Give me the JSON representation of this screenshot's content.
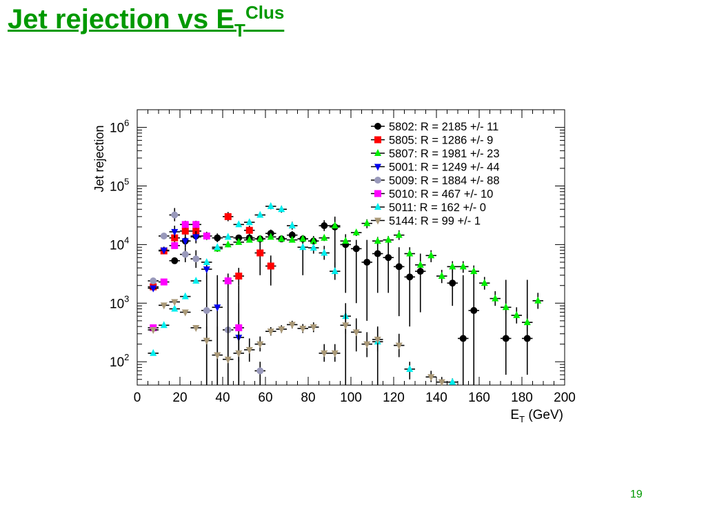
{
  "slide": {
    "title_main": "Jet rejection vs E",
    "title_sub": "T",
    "title_sup": "Clus",
    "page_number": "19"
  },
  "chart_data": {
    "type": "scatter",
    "ylabel": "Jet rejection",
    "xlabel_main": "E",
    "xlabel_sub": "T",
    "xlabel_unit": " (GeV)",
    "xlim": [
      0,
      200
    ],
    "ylim": [
      40,
      2000000
    ],
    "yscale": "log",
    "x_ticks": [
      "0",
      "20",
      "40",
      "60",
      "80",
      "100",
      "120",
      "140",
      "160",
      "180",
      "200"
    ],
    "y_tick_base": "10",
    "y_tick_exponents": [
      "2",
      "3",
      "4",
      "5",
      "6"
    ],
    "legend_position": "top-right",
    "series": [
      {
        "name": "5802: R = 2185 +/- 11",
        "color": "#000000",
        "marker": "circle",
        "points": [
          {
            "x": 17.5,
            "y": 5300,
            "lo": 4700,
            "hi": 6000
          },
          {
            "x": 22.5,
            "y": 11500,
            "lo": 9500,
            "hi": 14000
          },
          {
            "x": 27.5,
            "y": 14000,
            "lo": 11000,
            "hi": 18000
          },
          {
            "x": 37.5,
            "y": 13000,
            "lo": 11000,
            "hi": 15500
          },
          {
            "x": 47.5,
            "y": 13000,
            "lo": 11500,
            "hi": 14500
          },
          {
            "x": 52.5,
            "y": 13000,
            "lo": 11500,
            "hi": 14500
          },
          {
            "x": 57.5,
            "y": 12500,
            "lo": 11000,
            "hi": 14000
          },
          {
            "x": 62.5,
            "y": 15500,
            "lo": 13500,
            "hi": 18000
          },
          {
            "x": 67.5,
            "y": 12500,
            "lo": 11000,
            "hi": 14000
          },
          {
            "x": 72.5,
            "y": 14500,
            "lo": 12500,
            "hi": 17000
          },
          {
            "x": 77.5,
            "y": 12500,
            "lo": 3000,
            "hi": 14500
          },
          {
            "x": 82.5,
            "y": 11500,
            "lo": 8000,
            "hi": 14000
          },
          {
            "x": 87.5,
            "y": 21000,
            "lo": 17000,
            "hi": 26000
          },
          {
            "x": 92.5,
            "y": 20000,
            "lo": 3000,
            "hi": 30000
          },
          {
            "x": 97.5,
            "y": 10000,
            "lo": 1500,
            "hi": 15000
          },
          {
            "x": 102.5,
            "y": 8500,
            "lo": 1000,
            "hi": 12000
          },
          {
            "x": 107.5,
            "y": 5000,
            "lo": 500,
            "hi": 12000
          },
          {
            "x": 112.5,
            "y": 7000,
            "lo": 1500,
            "hi": 12000
          },
          {
            "x": 117.5,
            "y": 6000,
            "lo": 1500,
            "hi": 11000
          },
          {
            "x": 122.5,
            "y": 4200,
            "lo": 600,
            "hi": 9000
          },
          {
            "x": 127.5,
            "y": 2800,
            "lo": 400,
            "hi": 6000
          },
          {
            "x": 132.5,
            "y": 3500,
            "lo": 700,
            "hi": 7000
          },
          {
            "x": 147.5,
            "y": 2200,
            "lo": 900,
            "hi": 4000
          },
          {
            "x": 152.5,
            "y": 250,
            "lo": 40,
            "hi": 3000
          },
          {
            "x": 157.5,
            "y": 750,
            "lo": 40,
            "hi": 3000
          },
          {
            "x": 172.5,
            "y": 250,
            "lo": 60,
            "hi": 2500
          },
          {
            "x": 182.5,
            "y": 250,
            "lo": 60,
            "hi": 2500
          }
        ]
      },
      {
        "name": "5805: R = 1286 +/- 9",
        "color": "#ff0000",
        "marker": "square",
        "points": [
          {
            "x": 7.5,
            "y": 1900,
            "lo": 1800,
            "hi": 2000
          },
          {
            "x": 12.5,
            "y": 7800,
            "lo": 7000,
            "hi": 8600
          },
          {
            "x": 17.5,
            "y": 13000,
            "lo": 11000,
            "hi": 16000
          },
          {
            "x": 22.5,
            "y": 17000,
            "lo": 14000,
            "hi": 21000
          },
          {
            "x": 27.5,
            "y": 17000,
            "lo": 14000,
            "hi": 21000
          },
          {
            "x": 42.5,
            "y": 30000,
            "lo": 25000,
            "hi": 36000
          },
          {
            "x": 47.5,
            "y": 2900,
            "lo": 2000,
            "hi": 4000
          },
          {
            "x": 52.5,
            "y": 17500,
            "lo": 14500,
            "hi": 21000
          },
          {
            "x": 57.5,
            "y": 7200,
            "lo": 3000,
            "hi": 12000
          },
          {
            "x": 62.5,
            "y": 4300,
            "lo": 2000,
            "hi": 6500
          }
        ]
      },
      {
        "name": "5807: R = 1981 +/- 23",
        "color": "#00ee00",
        "marker": "triangle-up",
        "points": [
          {
            "x": 37.5,
            "y": 8500,
            "lo": 7500,
            "hi": 9500
          },
          {
            "x": 42.5,
            "y": 10000,
            "lo": 9000,
            "hi": 11000
          },
          {
            "x": 47.5,
            "y": 11000,
            "lo": 10000,
            "hi": 12000
          },
          {
            "x": 52.5,
            "y": 12000,
            "lo": 11000,
            "hi": 13000
          },
          {
            "x": 57.5,
            "y": 12500,
            "lo": 11500,
            "hi": 13500
          },
          {
            "x": 62.5,
            "y": 13500,
            "lo": 12500,
            "hi": 14500
          },
          {
            "x": 67.5,
            "y": 12500,
            "lo": 11500,
            "hi": 13500
          },
          {
            "x": 72.5,
            "y": 12000,
            "lo": 11000,
            "hi": 13000
          },
          {
            "x": 77.5,
            "y": 12500,
            "lo": 11500,
            "hi": 13500
          },
          {
            "x": 82.5,
            "y": 11500,
            "lo": 10500,
            "hi": 12500
          },
          {
            "x": 87.5,
            "y": 13000,
            "lo": 11500,
            "hi": 14500
          },
          {
            "x": 92.5,
            "y": 21000,
            "lo": 18000,
            "hi": 24000
          },
          {
            "x": 97.5,
            "y": 11500,
            "lo": 10000,
            "hi": 13000
          },
          {
            "x": 102.5,
            "y": 16000,
            "lo": 14000,
            "hi": 18000
          },
          {
            "x": 107.5,
            "y": 23000,
            "lo": 19000,
            "hi": 27000
          },
          {
            "x": 112.5,
            "y": 11500,
            "lo": 9500,
            "hi": 13500
          },
          {
            "x": 117.5,
            "y": 12000,
            "lo": 10000,
            "hi": 14000
          },
          {
            "x": 122.5,
            "y": 14500,
            "lo": 12000,
            "hi": 17500
          },
          {
            "x": 127.5,
            "y": 7000,
            "lo": 5500,
            "hi": 9000
          },
          {
            "x": 132.5,
            "y": 4500,
            "lo": 3500,
            "hi": 5500
          },
          {
            "x": 137.5,
            "y": 6500,
            "lo": 5000,
            "hi": 8000
          },
          {
            "x": 142.5,
            "y": 2900,
            "lo": 2200,
            "hi": 3700
          },
          {
            "x": 147.5,
            "y": 4200,
            "lo": 3300,
            "hi": 5200
          },
          {
            "x": 152.5,
            "y": 4200,
            "lo": 3300,
            "hi": 5200
          },
          {
            "x": 157.5,
            "y": 3500,
            "lo": 2700,
            "hi": 4400
          },
          {
            "x": 162.5,
            "y": 2200,
            "lo": 1700,
            "hi": 2800
          },
          {
            "x": 167.5,
            "y": 1200,
            "lo": 900,
            "hi": 1600
          },
          {
            "x": 172.5,
            "y": 850,
            "lo": 650,
            "hi": 1100
          },
          {
            "x": 177.5,
            "y": 620,
            "lo": 450,
            "hi": 850
          },
          {
            "x": 182.5,
            "y": 470,
            "lo": 330,
            "hi": 650
          },
          {
            "x": 187.5,
            "y": 1100,
            "lo": 800,
            "hi": 1500
          }
        ]
      },
      {
        "name": "5001: R = 1249 +/- 44",
        "color": "#0000ee",
        "marker": "triangle-down",
        "points": [
          {
            "x": 7.5,
            "y": 1800,
            "lo": 1600,
            "hi": 2000
          },
          {
            "x": 12.5,
            "y": 8000,
            "lo": 7000,
            "hi": 9200
          },
          {
            "x": 17.5,
            "y": 16500,
            "lo": 13000,
            "hi": 21000
          },
          {
            "x": 22.5,
            "y": 11500,
            "lo": 9000,
            "hi": 14500
          },
          {
            "x": 27.5,
            "y": 13500,
            "lo": 10500,
            "hi": 17000
          },
          {
            "x": 32.5,
            "y": 3800,
            "lo": 2500,
            "hi": 5500
          },
          {
            "x": 37.5,
            "y": 850,
            "lo": 40,
            "hi": 3000
          },
          {
            "x": 47.5,
            "y": 260,
            "lo": 40,
            "hi": 2000
          }
        ]
      },
      {
        "name": "5009: R = 1884 +/- 88",
        "color": "#9999bb",
        "marker": "circle",
        "points": [
          {
            "x": 7.5,
            "y": 2400,
            "lo": 2200,
            "hi": 2600
          },
          {
            "x": 12.5,
            "y": 14000,
            "lo": 12500,
            "hi": 15500
          },
          {
            "x": 17.5,
            "y": 32000,
            "lo": 25000,
            "hi": 42000
          },
          {
            "x": 22.5,
            "y": 6800,
            "lo": 5000,
            "hi": 9000
          },
          {
            "x": 27.5,
            "y": 5700,
            "lo": 4000,
            "hi": 8000
          },
          {
            "x": 32.5,
            "y": 750,
            "lo": 40,
            "hi": 3000
          },
          {
            "x": 42.5,
            "y": 350,
            "lo": 40,
            "hi": 2500
          },
          {
            "x": 57.5,
            "y": 70,
            "lo": 40,
            "hi": 100
          }
        ]
      },
      {
        "name": "5010: R = 467 +/- 10",
        "color": "#ff00ff",
        "marker": "square",
        "points": [
          {
            "x": 7.5,
            "y": 380,
            "lo": 340,
            "hi": 420
          },
          {
            "x": 12.5,
            "y": 2300,
            "lo": 2100,
            "hi": 2500
          },
          {
            "x": 17.5,
            "y": 9600,
            "lo": 8500,
            "hi": 10800
          },
          {
            "x": 22.5,
            "y": 22000,
            "lo": 19000,
            "hi": 25500
          },
          {
            "x": 27.5,
            "y": 22000,
            "lo": 19000,
            "hi": 25500
          },
          {
            "x": 32.5,
            "y": 14000,
            "lo": 12000,
            "hi": 16500
          },
          {
            "x": 42.5,
            "y": 2400,
            "lo": 1800,
            "hi": 3200
          },
          {
            "x": 47.5,
            "y": 380,
            "lo": 100,
            "hi": 1000
          }
        ]
      },
      {
        "name": "5011: R = 162 +/- 0",
        "color": "#00eeee",
        "marker": "triangle-up",
        "points": [
          {
            "x": 7.5,
            "y": 140,
            "lo": 130,
            "hi": 150
          },
          {
            "x": 12.5,
            "y": 420,
            "lo": 390,
            "hi": 450
          },
          {
            "x": 17.5,
            "y": 800,
            "lo": 740,
            "hi": 860
          },
          {
            "x": 22.5,
            "y": 1300,
            "lo": 1200,
            "hi": 1400
          },
          {
            "x": 27.5,
            "y": 2400,
            "lo": 2200,
            "hi": 2600
          },
          {
            "x": 32.5,
            "y": 5000,
            "lo": 4600,
            "hi": 5400
          },
          {
            "x": 37.5,
            "y": 9000,
            "lo": 8300,
            "hi": 9700
          },
          {
            "x": 42.5,
            "y": 13500,
            "lo": 12500,
            "hi": 14500
          },
          {
            "x": 47.5,
            "y": 22000,
            "lo": 20000,
            "hi": 24000
          },
          {
            "x": 52.5,
            "y": 24000,
            "lo": 22000,
            "hi": 26500
          },
          {
            "x": 57.5,
            "y": 32000,
            "lo": 29000,
            "hi": 35500
          },
          {
            "x": 62.5,
            "y": 45000,
            "lo": 40000,
            "hi": 51000
          },
          {
            "x": 67.5,
            "y": 40000,
            "lo": 35000,
            "hi": 46000
          },
          {
            "x": 72.5,
            "y": 21000,
            "lo": 18000,
            "hi": 24500
          },
          {
            "x": 77.5,
            "y": 9000,
            "lo": 7500,
            "hi": 10800
          },
          {
            "x": 82.5,
            "y": 8800,
            "lo": 7000,
            "hi": 11000
          },
          {
            "x": 87.5,
            "y": 7200,
            "lo": 5500,
            "hi": 9500
          },
          {
            "x": 92.5,
            "y": 3500,
            "lo": 2500,
            "hi": 5000
          },
          {
            "x": 97.5,
            "y": 600,
            "lo": 300,
            "hi": 1000
          },
          {
            "x": 112.5,
            "y": 220,
            "lo": 40,
            "hi": 400
          },
          {
            "x": 127.5,
            "y": 75,
            "lo": 50,
            "hi": 100
          },
          {
            "x": 147.5,
            "y": 45,
            "lo": 40,
            "hi": 52
          }
        ]
      },
      {
        "name": "5144: R = 99 +/- 1",
        "color": "#aa9977",
        "marker": "triangle-down",
        "points": [
          {
            "x": 7.5,
            "y": 350,
            "lo": 320,
            "hi": 380
          },
          {
            "x": 12.5,
            "y": 920,
            "lo": 860,
            "hi": 980
          },
          {
            "x": 17.5,
            "y": 1050,
            "lo": 980,
            "hi": 1120
          },
          {
            "x": 22.5,
            "y": 700,
            "lo": 640,
            "hi": 760
          },
          {
            "x": 27.5,
            "y": 380,
            "lo": 340,
            "hi": 420
          },
          {
            "x": 32.5,
            "y": 230,
            "lo": 40,
            "hi": 400
          },
          {
            "x": 37.5,
            "y": 130,
            "lo": 40,
            "hi": 400
          },
          {
            "x": 42.5,
            "y": 110,
            "lo": 40,
            "hi": 400
          },
          {
            "x": 47.5,
            "y": 140,
            "lo": 40,
            "hi": 300
          },
          {
            "x": 52.5,
            "y": 160,
            "lo": 100,
            "hi": 250
          },
          {
            "x": 57.5,
            "y": 200,
            "lo": 150,
            "hi": 270
          },
          {
            "x": 62.5,
            "y": 330,
            "lo": 280,
            "hi": 390
          },
          {
            "x": 67.5,
            "y": 360,
            "lo": 310,
            "hi": 420
          },
          {
            "x": 72.5,
            "y": 430,
            "lo": 370,
            "hi": 500
          },
          {
            "x": 77.5,
            "y": 370,
            "lo": 310,
            "hi": 440
          },
          {
            "x": 82.5,
            "y": 390,
            "lo": 320,
            "hi": 470
          },
          {
            "x": 87.5,
            "y": 140,
            "lo": 100,
            "hi": 200
          },
          {
            "x": 92.5,
            "y": 140,
            "lo": 100,
            "hi": 200
          },
          {
            "x": 97.5,
            "y": 420,
            "lo": 40,
            "hi": 700
          },
          {
            "x": 102.5,
            "y": 320,
            "lo": 150,
            "hi": 550
          },
          {
            "x": 107.5,
            "y": 200,
            "lo": 120,
            "hi": 320
          },
          {
            "x": 112.5,
            "y": 240,
            "lo": 150,
            "hi": 380
          },
          {
            "x": 122.5,
            "y": 190,
            "lo": 120,
            "hi": 300
          },
          {
            "x": 137.5,
            "y": 55,
            "lo": 45,
            "hi": 70
          },
          {
            "x": 142.5,
            "y": 45,
            "lo": 40,
            "hi": 55
          }
        ]
      }
    ]
  }
}
